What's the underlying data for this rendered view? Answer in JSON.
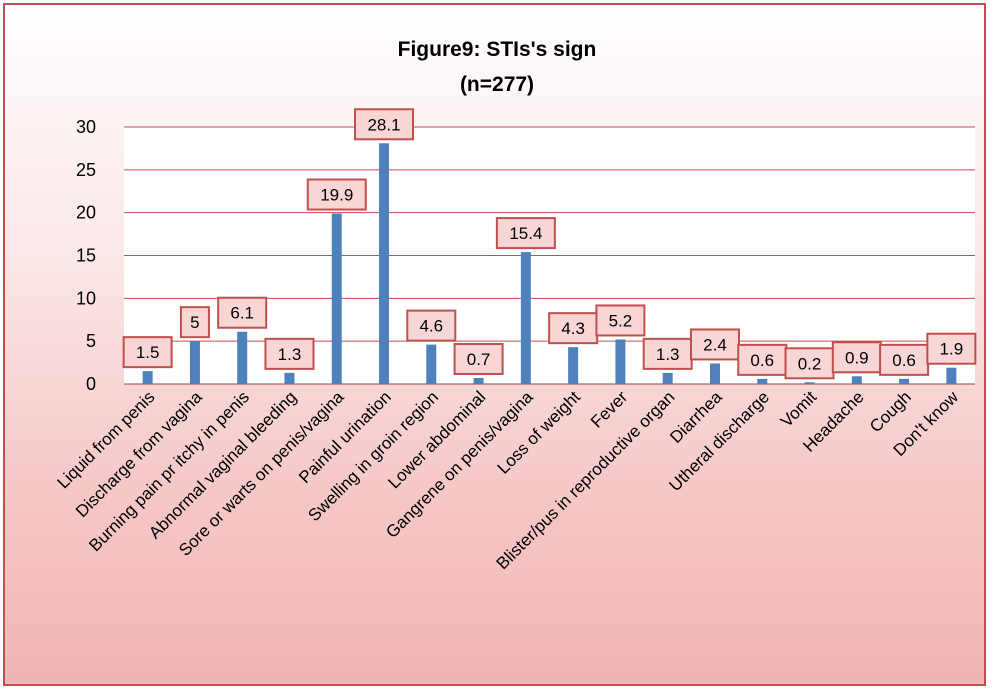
{
  "chart_data": {
    "type": "bar",
    "title": "Figure9: STIs's sign",
    "subtitle": "(n=277)",
    "xlabel": "",
    "ylabel": "",
    "ylim": [
      0,
      30
    ],
    "yticks": [
      0,
      5,
      10,
      15,
      20,
      25,
      30
    ],
    "grid": true,
    "legend": "none",
    "colors": {
      "bar": "#4f81bd",
      "grid": "#c0504d",
      "label_fill": "#f9d6d6",
      "label_border": "#c0504d",
      "frame_border": "#c0504d"
    },
    "categories": [
      "Liquid from penis",
      "Discharge from vagina",
      "Burning pain pr itchy in penis",
      "Abnormal vaginal bleeding",
      "Sore or warts on penis/vagina",
      "Painful urination",
      "Swelling in groin region",
      "Lower abdominal",
      "Gangrene on penis/vagina",
      "Loss of weight",
      "Fever",
      "Blister/pus in reproductive organ",
      "Diarrhea",
      "Utheral discharge",
      "Vomit",
      "Headache",
      "Cough",
      "Don't know"
    ],
    "values": [
      1.5,
      5,
      6.1,
      1.3,
      19.9,
      28.1,
      4.6,
      0.7,
      15.4,
      4.3,
      5.2,
      1.3,
      2.4,
      0.6,
      0.2,
      0.9,
      0.6,
      1.9
    ]
  }
}
